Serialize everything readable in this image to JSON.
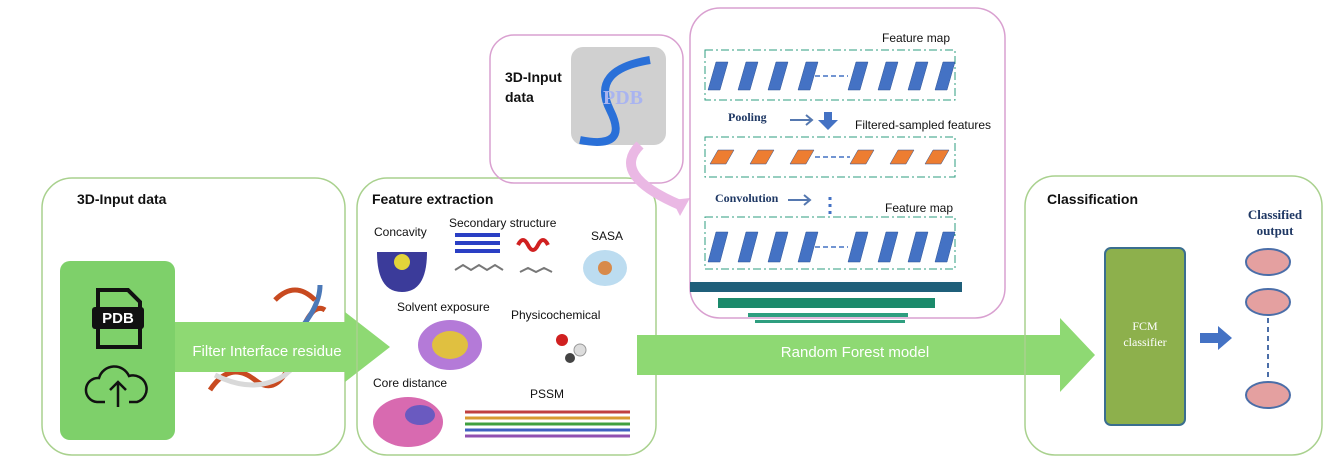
{
  "input_panel": {
    "title": "3D-Input data",
    "icon_label": "PDB"
  },
  "arrow_filter": "Filter Interface residue",
  "feature_panel": {
    "title": "Feature extraction",
    "features": [
      "Concavity",
      "Secondary structure",
      "SASA",
      "Solvent exposure",
      "Physicochemical",
      "Core distance",
      "PSSM"
    ]
  },
  "pdb_panel": {
    "title_lines": [
      "3D-Input",
      "data"
    ],
    "logo": "PDB"
  },
  "cnn_panel": {
    "feature_map_top": "Feature map",
    "pooling": "Pooling",
    "filtered": "Filtered-sampled features",
    "convolution": "Convolution",
    "feature_map_bottom": "Feature map"
  },
  "arrow_model": "Random Forest model",
  "classification_panel": {
    "title": "Classification",
    "output_lines": [
      "Classified",
      "output"
    ],
    "classifier_lines": [
      "FCM",
      "classifier"
    ]
  }
}
